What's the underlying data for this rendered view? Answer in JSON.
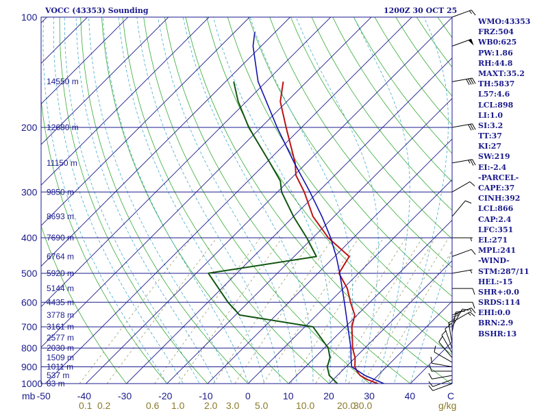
{
  "header": {
    "station": "VOCC (43353) Sounding",
    "time": "1200Z 30 OCT 25"
  },
  "indices": [
    "WMO:43353",
    "FRZ:504",
    "WB0:625",
    "PW:1.86",
    "RH:44.8",
    "MAXT:35.2",
    "TH:5837",
    "L57:4.6",
    "LCL:898",
    "LI:1.0",
    "SI:3.2",
    "TT:37",
    "KI:27",
    "SW:219",
    "EI:-2.4",
    "-PARCEL-",
    "CAPE:37",
    "CINH:392",
    "LCL:866",
    "CAP:2.4",
    "LFC:351",
    "EL:271",
    "MPL:241",
    "-WIND-",
    "STM:287/11",
    "HEL:-15",
    "SHR+:0.0",
    "SRDS:114",
    "EHI:0.0",
    "BRN:2.9",
    "BSHR:13"
  ],
  "chart_data": {
    "type": "line",
    "chart_kind": "skew-T log-p",
    "ylabel": "mb",
    "xunit": "C",
    "mixing_ratio_unit": "g/kg",
    "pressure_ticks": [
      100,
      200,
      300,
      400,
      500,
      600,
      700,
      800,
      900,
      1000
    ],
    "pressure_range": [
      1000,
      100
    ],
    "temperature_ticks": [
      -50,
      -40,
      -30,
      -20,
      -10,
      0,
      10,
      20,
      30,
      40
    ],
    "temperature_range": [
      -50,
      50
    ],
    "mixing_ratio_labels": [
      "0.1",
      "0.2",
      "0.6",
      "1.0",
      "2.0",
      "3.0",
      "5.0",
      "10.0",
      "20.0",
      "30.0"
    ],
    "height_labels": [
      {
        "p": 150,
        "text": "14550 m"
      },
      {
        "p": 200,
        "text": "12680 m"
      },
      {
        "p": 250,
        "text": "11150 m"
      },
      {
        "p": 300,
        "text": "9850 m"
      },
      {
        "p": 350,
        "text": "8693 m"
      },
      {
        "p": 400,
        "text": "7690 m"
      },
      {
        "p": 450,
        "text": "6764 m"
      },
      {
        "p": 500,
        "text": "5920 m"
      },
      {
        "p": 550,
        "text": "5144 m"
      },
      {
        "p": 600,
        "text": "4435 m"
      },
      {
        "p": 650,
        "text": "3778 m"
      },
      {
        "p": 700,
        "text": "3161 m"
      },
      {
        "p": 750,
        "text": "2577 m"
      },
      {
        "p": 800,
        "text": "2030 m"
      },
      {
        "p": 850,
        "text": "1509 m"
      },
      {
        "p": 900,
        "text": "1011 m"
      },
      {
        "p": 950,
        "text": "537 m"
      },
      {
        "p": 1000,
        "text": "83 m"
      }
    ],
    "temperature_profile": [
      {
        "p": 1000,
        "t": 32.0
      },
      {
        "p": 975,
        "t": 28.4
      },
      {
        "p": 950,
        "t": 25.6
      },
      {
        "p": 925,
        "t": 23.8
      },
      {
        "p": 900,
        "t": 22.2
      },
      {
        "p": 850,
        "t": 20.0
      },
      {
        "p": 800,
        "t": 17.0
      },
      {
        "p": 750,
        "t": 14.4
      },
      {
        "p": 700,
        "t": 11.6
      },
      {
        "p": 650,
        "t": 9.4
      },
      {
        "p": 600,
        "t": 5.2
      },
      {
        "p": 550,
        "t": 1.0
      },
      {
        "p": 500,
        "t": -4.8
      },
      {
        "p": 450,
        "t": -6.4
      },
      {
        "p": 400,
        "t": -16.2
      },
      {
        "p": 350,
        "t": -25.2
      },
      {
        "p": 300,
        "t": -33.4
      },
      {
        "p": 270,
        "t": -39.6
      },
      {
        "p": 250,
        "t": -42.8
      },
      {
        "p": 200,
        "t": -53.8
      },
      {
        "p": 170,
        "t": -61.6
      },
      {
        "p": 150,
        "t": -65.8
      }
    ],
    "dewpoint_profile": [
      {
        "p": 1000,
        "t": 22.0
      },
      {
        "p": 950,
        "t": 18.0
      },
      {
        "p": 900,
        "t": 15.4
      },
      {
        "p": 850,
        "t": 13.8
      },
      {
        "p": 800,
        "t": 11.0
      },
      {
        "p": 700,
        "t": 2.0
      },
      {
        "p": 650,
        "t": -19.0
      },
      {
        "p": 600,
        "t": -25.0
      },
      {
        "p": 500,
        "t": -37.0
      },
      {
        "p": 450,
        "t": -14.5
      },
      {
        "p": 400,
        "t": -21.5
      },
      {
        "p": 350,
        "t": -30.0
      },
      {
        "p": 300,
        "t": -39.0
      },
      {
        "p": 280,
        "t": -42.0
      },
      {
        "p": 250,
        "t": -49.0
      },
      {
        "p": 200,
        "t": -63.0
      },
      {
        "p": 170,
        "t": -72.0
      },
      {
        "p": 150,
        "t": -78.0
      }
    ],
    "parcel_profile": [
      {
        "p": 1000,
        "t": 33.5
      },
      {
        "p": 950,
        "t": 26.8
      },
      {
        "p": 900,
        "t": 21.4
      },
      {
        "p": 850,
        "t": 19.0
      },
      {
        "p": 800,
        "t": 16.6
      },
      {
        "p": 700,
        "t": 10.6
      },
      {
        "p": 600,
        "t": 3.7
      },
      {
        "p": 500,
        "t": -4.6
      },
      {
        "p": 450,
        "t": -9.6
      },
      {
        "p": 400,
        "t": -15.6
      },
      {
        "p": 350,
        "t": -23.0
      },
      {
        "p": 300,
        "t": -32.0
      },
      {
        "p": 250,
        "t": -43.0
      },
      {
        "p": 200,
        "t": -56.0
      },
      {
        "p": 150,
        "t": -72.0
      },
      {
        "p": 120,
        "t": -82.0
      },
      {
        "p": 110,
        "t": -85.0
      }
    ],
    "wind_barbs": [
      {
        "p": 1000,
        "dir": 250,
        "spd": 10
      },
      {
        "p": 975,
        "dir": 250,
        "spd": 10
      },
      {
        "p": 950,
        "dir": 260,
        "spd": 10
      },
      {
        "p": 925,
        "dir": 270,
        "spd": 10
      },
      {
        "p": 900,
        "dir": 280,
        "spd": 10
      },
      {
        "p": 875,
        "dir": 300,
        "spd": 10
      },
      {
        "p": 850,
        "dir": 320,
        "spd": 10
      },
      {
        "p": 825,
        "dir": 330,
        "spd": 10
      },
      {
        "p": 800,
        "dir": 340,
        "spd": 10
      },
      {
        "p": 775,
        "dir": 350,
        "spd": 15
      },
      {
        "p": 750,
        "dir": 360,
        "spd": 15
      },
      {
        "p": 725,
        "dir": 10,
        "spd": 15
      },
      {
        "p": 700,
        "dir": 30,
        "spd": 15
      },
      {
        "p": 680,
        "dir": 60,
        "spd": 15
      },
      {
        "p": 650,
        "dir": 70,
        "spd": 15
      },
      {
        "p": 600,
        "dir": 90,
        "spd": 10
      },
      {
        "p": 550,
        "dir": 90,
        "spd": 10
      },
      {
        "p": 500,
        "dir": 80,
        "spd": 5
      },
      {
        "p": 450,
        "dir": 70,
        "spd": 10
      },
      {
        "p": 400,
        "dir": 90,
        "spd": 5
      },
      {
        "p": 350,
        "dir": 40,
        "spd": 10
      },
      {
        "p": 300,
        "dir": 60,
        "spd": 10
      },
      {
        "p": 250,
        "dir": 80,
        "spd": 25
      },
      {
        "p": 200,
        "dir": 80,
        "spd": 30
      },
      {
        "p": 150,
        "dir": 80,
        "spd": 40
      },
      {
        "p": 120,
        "dir": 70,
        "spd": 50
      },
      {
        "p": 100,
        "dir": 70,
        "spd": 15
      }
    ],
    "colors": {
      "frame": "#1a1a8c",
      "isobar": "#1a1a8c",
      "isotherm": "#1a1a8c",
      "dry_adiabat": "#33aa33",
      "moist_adiabat": "#44aacc",
      "mixing_ratio": "#999966",
      "temperature": "#bb1111",
      "dewpoint": "#115511",
      "parcel": "#1111aa",
      "tick_label": "#1a1a8c",
      "mixing_label": "#8a7a2a"
    }
  }
}
